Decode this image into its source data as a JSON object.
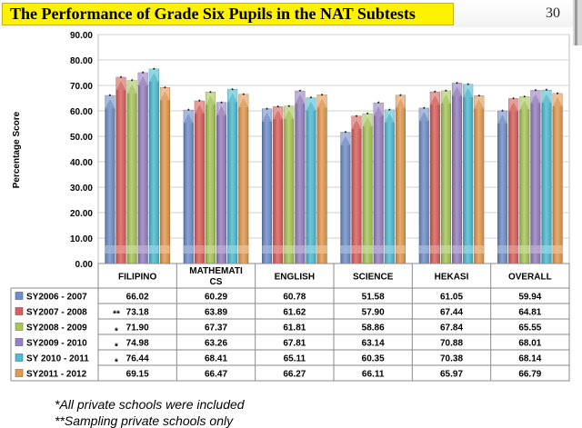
{
  "slide": {
    "title": "The Performance of Grade Six Pupils in the NAT Subtests",
    "page_number": "30"
  },
  "chart_data": {
    "type": "bar",
    "title": "",
    "xlabel": "",
    "ylabel": "Percentage Score",
    "ylim": [
      0,
      90
    ],
    "ytick_labels": [
      "0.00",
      "10.00",
      "20.00",
      "30.00",
      "40.00",
      "50.00",
      "60.00",
      "70.00",
      "80.00",
      "90.00"
    ],
    "grid": true,
    "legend": "table-left",
    "categories": [
      "FILIPINO",
      "MATHEMATICS",
      "ENGLISH",
      "SCIENCE",
      "HEKASI",
      "OVERALL"
    ],
    "category_labels": [
      [
        "FILIPINO"
      ],
      [
        "MATHEMATI",
        "CS"
      ],
      [
        "ENGLISH"
      ],
      [
        "SCIENCE"
      ],
      [
        "HEKASI"
      ],
      [
        "OVERALL"
      ]
    ],
    "series": [
      {
        "name": "SY2006 - 2007",
        "color": "#6f8fc9",
        "values": [
          66.02,
          60.29,
          60.78,
          51.58,
          61.05,
          59.94
        ],
        "labels": [
          "66.02",
          "60.29",
          "60.78",
          "51.58",
          "61.05",
          "59.94"
        ],
        "mark": ""
      },
      {
        "name": "SY2007 - 2008",
        "color": "#d9605c",
        "values": [
          73.18,
          63.89,
          61.62,
          57.9,
          67.44,
          64.81
        ],
        "labels": [
          "73.18",
          "63.89",
          "61.62",
          "57.90",
          "67.44",
          "64.81"
        ],
        "mark": "**"
      },
      {
        "name": "SY2008 - 2009",
        "color": "#a8c65a",
        "values": [
          71.9,
          67.37,
          61.81,
          58.86,
          67.84,
          65.55
        ],
        "labels": [
          "71.90",
          "67.37",
          "61.81",
          "58.86",
          "67.84",
          "65.55"
        ],
        "mark": "*"
      },
      {
        "name": "SY2009 - 2010",
        "color": "#9680c0",
        "values": [
          74.98,
          63.26,
          67.81,
          63.14,
          70.88,
          68.01
        ],
        "labels": [
          "74.98",
          "63.26",
          "67.81",
          "63.14",
          "70.88",
          "68.01"
        ],
        "mark": "*"
      },
      {
        "name": "SY 2010 - 2011",
        "color": "#4fbcd2",
        "values": [
          76.44,
          68.41,
          65.11,
          60.35,
          70.38,
          68.14
        ],
        "labels": [
          "76.44",
          "68.41",
          "65.11",
          "60.35",
          "70.38",
          "68.14"
        ],
        "mark": "*"
      },
      {
        "name": "SY2011 - 2012",
        "color": "#e39a50",
        "values": [
          69.15,
          66.47,
          66.27,
          66.11,
          65.97,
          66.79
        ],
        "labels": [
          "69.15",
          "66.47",
          "66.27",
          "66.11",
          "65.97",
          "66.79"
        ],
        "mark": ""
      }
    ]
  },
  "footnotes": [
    "*All private schools were included",
    "**Sampling private schools only"
  ]
}
